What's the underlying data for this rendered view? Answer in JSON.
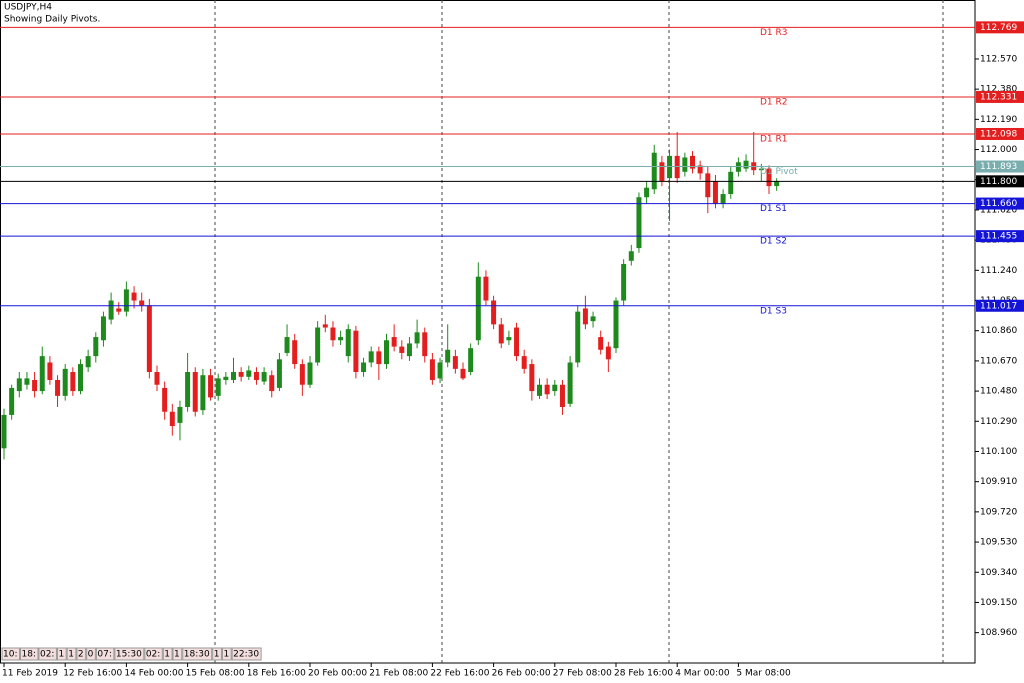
{
  "chart_data": {
    "type": "candlestick",
    "title": "USDJPY,H4",
    "subtitle": "Showing Daily Pivots.",
    "bull_color": "#1e8a1e",
    "bear_color": "#e41e1e",
    "categories": [
      "11 Feb 2019",
      null,
      null,
      null,
      null,
      null,
      null,
      null,
      "12 Feb 16:00",
      null,
      null,
      null,
      null,
      null,
      null,
      null,
      "14 Feb 00:00",
      null,
      null,
      null,
      null,
      null,
      null,
      null,
      "15 Feb 08:00",
      null,
      null,
      null,
      null,
      null,
      null,
      null,
      "18 Feb 16:00",
      null,
      null,
      null,
      null,
      null,
      null,
      null,
      "20 Feb 00:00",
      null,
      null,
      null,
      null,
      null,
      null,
      null,
      "21 Feb 08:00",
      null,
      null,
      null,
      null,
      null,
      null,
      null,
      "22 Feb 16:00",
      null,
      null,
      null,
      null,
      null,
      null,
      null,
      "26 Feb 00:00",
      null,
      null,
      null,
      null,
      null,
      null,
      null,
      "27 Feb 08:00",
      null,
      null,
      null,
      null,
      null,
      null,
      null,
      "28 Feb 16:00",
      null,
      null,
      null,
      null,
      null,
      null,
      null,
      "4 Mar 00:00",
      null,
      null,
      null,
      null,
      null,
      null,
      null,
      "5 Mar 08:00",
      null,
      null,
      null,
      null,
      null
    ],
    "open": [
      110.12,
      110.33,
      110.48,
      110.52,
      110.55,
      110.48,
      110.66,
      110.55,
      110.45,
      110.6,
      110.48,
      110.63,
      110.7,
      110.8,
      110.93,
      111.0,
      110.98,
      111.1,
      111.05,
      111.02,
      110.6,
      110.5,
      110.35,
      110.28,
      110.38,
      110.6,
      110.36,
      110.58,
      110.45,
      110.55,
      110.55,
      110.6,
      110.57,
      110.6,
      110.54,
      110.58,
      110.5,
      110.72,
      110.8,
      110.65,
      110.52,
      110.66,
      110.9,
      110.88,
      110.8,
      110.7,
      110.86,
      110.6,
      110.66,
      110.73,
      110.65,
      110.82,
      110.76,
      110.7,
      110.78,
      110.85,
      110.68,
      110.56,
      110.66,
      110.7,
      110.62,
      110.6,
      110.8,
      111.2,
      111.05,
      110.9,
      110.8,
      110.88,
      110.7,
      110.65,
      110.45,
      110.52,
      110.48,
      110.52,
      110.4,
      110.66,
      111.0,
      110.92,
      110.82,
      110.76,
      110.75,
      111.05,
      111.3,
      111.38,
      111.7,
      111.75,
      111.92,
      111.82,
      111.96,
      111.86,
      111.96,
      111.9,
      111.85,
      111.8,
      111.66,
      111.72,
      111.86,
      111.88,
      111.92,
      111.87,
      111.88,
      111.77
    ],
    "high": [
      110.37,
      110.52,
      110.6,
      110.6,
      110.6,
      110.76,
      110.7,
      110.58,
      110.65,
      110.63,
      110.68,
      110.74,
      110.85,
      110.98,
      111.1,
      111.04,
      111.17,
      111.14,
      111.1,
      111.06,
      110.64,
      110.54,
      110.4,
      110.42,
      110.72,
      110.63,
      110.62,
      110.62,
      110.59,
      110.6,
      110.69,
      110.63,
      110.64,
      110.63,
      110.63,
      110.61,
      110.72,
      110.9,
      110.84,
      110.68,
      110.7,
      110.92,
      110.96,
      110.92,
      110.86,
      110.9,
      110.89,
      110.69,
      110.76,
      110.76,
      110.84,
      110.9,
      110.8,
      110.82,
      110.93,
      110.88,
      110.72,
      110.69,
      110.9,
      110.74,
      110.66,
      110.78,
      111.29,
      111.24,
      111.08,
      110.94,
      110.86,
      110.91,
      110.74,
      110.68,
      110.56,
      110.56,
      110.55,
      110.55,
      110.7,
      111.02,
      111.08,
      110.98,
      110.86,
      110.79,
      111.07,
      111.31,
      111.4,
      111.73,
      111.8,
      112.03,
      111.96,
      112.0,
      112.11,
      111.98,
      111.99,
      111.93,
      111.89,
      111.84,
      111.75,
      111.89,
      111.95,
      111.97,
      112.11,
      111.91,
      111.9,
      111.82
    ],
    "low": [
      110.05,
      110.3,
      110.44,
      110.49,
      110.44,
      110.46,
      110.52,
      110.38,
      110.42,
      110.45,
      110.46,
      110.6,
      110.66,
      110.76,
      110.9,
      110.96,
      110.95,
      111.0,
      110.98,
      110.56,
      110.48,
      110.3,
      110.2,
      110.17,
      110.35,
      110.32,
      110.33,
      110.42,
      110.42,
      110.52,
      110.53,
      110.54,
      110.55,
      110.52,
      110.52,
      110.44,
      110.48,
      110.7,
      110.62,
      110.45,
      110.5,
      110.64,
      110.85,
      110.76,
      110.77,
      110.66,
      110.56,
      110.57,
      110.63,
      110.55,
      110.62,
      110.73,
      110.68,
      110.67,
      110.75,
      110.66,
      110.52,
      110.53,
      110.63,
      110.59,
      110.55,
      110.58,
      110.77,
      111.02,
      110.87,
      110.75,
      110.77,
      110.67,
      110.59,
      110.42,
      110.43,
      110.43,
      110.45,
      110.33,
      110.38,
      110.63,
      110.87,
      110.88,
      110.71,
      110.6,
      110.72,
      111.02,
      111.27,
      111.35,
      111.66,
      111.72,
      111.77,
      111.55,
      111.79,
      111.83,
      111.85,
      111.81,
      111.6,
      111.63,
      111.63,
      111.69,
      111.83,
      111.86,
      111.84,
      111.8,
      111.72,
      111.74
    ],
    "close": [
      110.33,
      110.5,
      110.56,
      110.56,
      110.48,
      110.7,
      110.55,
      110.45,
      110.62,
      110.48,
      110.65,
      110.7,
      110.82,
      110.95,
      111.05,
      110.98,
      111.12,
      111.05,
      111.02,
      110.6,
      110.52,
      110.35,
      110.26,
      110.38,
      110.6,
      110.35,
      110.58,
      110.44,
      110.56,
      110.57,
      110.6,
      110.57,
      110.61,
      110.55,
      110.6,
      110.48,
      110.68,
      110.82,
      110.65,
      110.52,
      110.66,
      110.88,
      110.88,
      110.8,
      110.82,
      110.87,
      110.6,
      110.66,
      110.73,
      110.65,
      110.8,
      110.76,
      110.72,
      110.78,
      110.85,
      110.7,
      110.55,
      110.66,
      110.74,
      110.62,
      110.56,
      110.75,
      111.2,
      111.05,
      110.9,
      110.78,
      110.82,
      110.7,
      110.62,
      110.48,
      110.52,
      110.46,
      110.52,
      110.38,
      110.66,
      110.98,
      110.9,
      110.95,
      110.74,
      110.68,
      111.05,
      111.28,
      111.36,
      111.7,
      111.76,
      111.98,
      111.8,
      111.96,
      111.82,
      111.95,
      111.88,
      111.85,
      111.7,
      111.66,
      111.72,
      111.86,
      111.92,
      111.93,
      111.87,
      111.88,
      111.77,
      111.8
    ],
    "ylim": [
      108.769,
      112.941
    ],
    "yticks": [
      {
        "value": 112.57,
        "label": "112.570"
      },
      {
        "value": 112.38,
        "label": "112.380"
      },
      {
        "value": 112.19,
        "label": "112.190"
      },
      {
        "value": 112.0,
        "label": "112.000"
      },
      {
        "value": 111.81,
        "label": "111.810"
      },
      {
        "value": 111.62,
        "label": "111.620"
      },
      {
        "value": 111.43,
        "label": "111.430"
      },
      {
        "value": 111.24,
        "label": "111.240"
      },
      {
        "value": 111.05,
        "label": "111.050"
      },
      {
        "value": 110.86,
        "label": "110.860"
      },
      {
        "value": 110.67,
        "label": "110.670"
      },
      {
        "value": 110.48,
        "label": "110.480"
      },
      {
        "value": 110.29,
        "label": "110.290"
      },
      {
        "value": 110.1,
        "label": "110.100"
      },
      {
        "value": 109.91,
        "label": "109.910"
      },
      {
        "value": 109.72,
        "label": "109.720"
      },
      {
        "value": 109.53,
        "label": "109.530"
      },
      {
        "value": 109.34,
        "label": "109.340"
      },
      {
        "value": 109.15,
        "label": "109.150"
      },
      {
        "value": 108.96,
        "label": "108.960"
      }
    ],
    "levels": [
      {
        "name": "D1 R3",
        "value": 112.769,
        "value_label": "112.769",
        "color": "#e41e1e"
      },
      {
        "name": "D1 R2",
        "value": 112.331,
        "value_label": "112.331",
        "color": "#e41e1e"
      },
      {
        "name": "D1 R1",
        "value": 112.098,
        "value_label": "112.098",
        "color": "#e41e1e"
      },
      {
        "name": "D1 Pivot",
        "value": 111.893,
        "value_label": "111.893",
        "color": "#7aaeae"
      },
      {
        "value": 111.8,
        "value_label": "111.800",
        "color": "#000000"
      },
      {
        "name": "D1 S1",
        "value": 111.66,
        "value_label": "111.660",
        "color": "#1414d8"
      },
      {
        "name": "D1 S2",
        "value": 111.455,
        "value_label": "111.455",
        "color": "#1414d8"
      },
      {
        "name": "D1 S3",
        "value": 111.017,
        "value_label": "111.017",
        "color": "#1414d8"
      }
    ]
  },
  "time_tags": [
    "10:",
    "18:",
    "02:",
    "1",
    "1",
    "2",
    "0",
    "07:",
    "15:30",
    "02:",
    "1",
    "1",
    "18:30",
    "1",
    "1",
    "22:30"
  ]
}
